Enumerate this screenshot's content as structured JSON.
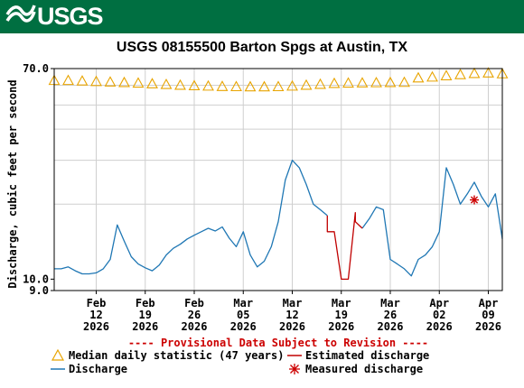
{
  "header": {
    "logo_text": "USGS",
    "brand_color": "#006f41"
  },
  "chart_data": {
    "type": "line",
    "title": "USGS 08155500 Barton Spgs at Austin, TX",
    "ylabel": "Discharge, cubic feet per second",
    "y_scale": "log",
    "ylim": [
      9.0,
      70.0
    ],
    "y_ticks": [
      {
        "value": 70.0,
        "label": "70.0"
      },
      {
        "value": 10.0,
        "label": "10.0"
      },
      {
        "value": 9.0,
        "label": "9.0"
      }
    ],
    "x_range": [
      "2026-02-06",
      "2026-04-11"
    ],
    "x_ticks": [
      {
        "date": "2026-02-12",
        "month": "Feb",
        "day": "12",
        "year": "2026"
      },
      {
        "date": "2026-02-19",
        "month": "Feb",
        "day": "19",
        "year": "2026"
      },
      {
        "date": "2026-02-26",
        "month": "Feb",
        "day": "26",
        "year": "2026"
      },
      {
        "date": "2026-03-05",
        "month": "Mar",
        "day": "05",
        "year": "2026"
      },
      {
        "date": "2026-03-12",
        "month": "Mar",
        "day": "12",
        "year": "2026"
      },
      {
        "date": "2026-03-19",
        "month": "Mar",
        "day": "19",
        "year": "2026"
      },
      {
        "date": "2026-03-26",
        "month": "Mar",
        "day": "26",
        "year": "2026"
      },
      {
        "date": "2026-04-02",
        "month": "Apr",
        "day": "02",
        "year": "2026"
      },
      {
        "date": "2026-04-09",
        "month": "Apr",
        "day": "09",
        "year": "2026"
      }
    ],
    "grid": true,
    "notice": "---- Provisional Data Subject to Revision ----",
    "legend": [
      {
        "key": "median",
        "label": "Median daily statistic (47 years)"
      },
      {
        "key": "estimated",
        "label": "Estimated discharge"
      },
      {
        "key": "discharge",
        "label": "Discharge"
      },
      {
        "key": "measured",
        "label": "Measured discharge"
      }
    ],
    "colors": {
      "median": "#e8a400",
      "discharge": "#1f77b4",
      "estimated": "#c00000",
      "measured": "#cc0000",
      "notice": "#cc0000"
    },
    "series": [
      {
        "key": "median",
        "x": [
          "2026-02-06",
          "2026-02-08",
          "2026-02-10",
          "2026-02-12",
          "2026-02-14",
          "2026-02-16",
          "2026-02-18",
          "2026-02-20",
          "2026-02-22",
          "2026-02-24",
          "2026-02-26",
          "2026-02-28",
          "2026-03-02",
          "2026-03-04",
          "2026-03-06",
          "2026-03-08",
          "2026-03-10",
          "2026-03-12",
          "2026-03-14",
          "2026-03-16",
          "2026-03-18",
          "2026-03-20",
          "2026-03-22",
          "2026-03-24",
          "2026-03-26",
          "2026-03-28",
          "2026-03-30",
          "2026-04-01",
          "2026-04-03",
          "2026-04-05",
          "2026-04-07",
          "2026-04-09",
          "2026-04-11"
        ],
        "y": [
          63.0,
          63.0,
          62.7,
          62.4,
          62.1,
          61.8,
          61.5,
          61.1,
          60.7,
          60.3,
          60.0,
          59.8,
          59.6,
          59.5,
          59.4,
          59.4,
          59.5,
          59.8,
          60.3,
          60.8,
          61.3,
          61.5,
          61.6,
          61.7,
          61.8,
          61.9,
          64.5,
          65.0,
          65.8,
          66.5,
          67.2,
          67.5,
          67.0
        ]
      },
      {
        "key": "discharge",
        "x": [
          "2026-02-06",
          "2026-02-07",
          "2026-02-08",
          "2026-02-09",
          "2026-02-10",
          "2026-02-11",
          "2026-02-12",
          "2026-02-13",
          "2026-02-14",
          "2026-02-15",
          "2026-02-16",
          "2026-02-17",
          "2026-02-18",
          "2026-02-19",
          "2026-02-20",
          "2026-02-21",
          "2026-02-22",
          "2026-02-23",
          "2026-02-24",
          "2026-02-25",
          "2026-02-26",
          "2026-02-27",
          "2026-02-28",
          "2026-03-01",
          "2026-03-02",
          "2026-03-03",
          "2026-03-04",
          "2026-03-05",
          "2026-03-06",
          "2026-03-07",
          "2026-03-08",
          "2026-03-09",
          "2026-03-10",
          "2026-03-11",
          "2026-03-12",
          "2026-03-13",
          "2026-03-14",
          "2026-03-15",
          "2026-03-16",
          "2026-03-17",
          "2026-03-18",
          "2026-03-19",
          "2026-03-20",
          "2026-03-21",
          "2026-03-22",
          "2026-03-23",
          "2026-03-24",
          "2026-03-25",
          "2026-03-26",
          "2026-03-27",
          "2026-03-28",
          "2026-03-29",
          "2026-03-30",
          "2026-03-31",
          "2026-04-01",
          "2026-04-02",
          "2026-04-03",
          "2026-04-04",
          "2026-04-05",
          "2026-04-06",
          "2026-04-07",
          "2026-04-08",
          "2026-04-09",
          "2026-04-10",
          "2026-04-11"
        ],
        "y": [
          11.0,
          11.0,
          11.2,
          10.8,
          10.5,
          10.5,
          10.6,
          11.0,
          12.0,
          16.5,
          14.2,
          12.3,
          11.5,
          11.1,
          10.8,
          11.4,
          12.5,
          13.3,
          13.8,
          14.5,
          15.0,
          15.5,
          16.0,
          15.6,
          16.2,
          14.6,
          13.5,
          15.5,
          12.5,
          11.2,
          11.8,
          13.5,
          17.0,
          25.0,
          30.0,
          28.0,
          24.0,
          20.0,
          19.0,
          18.0,
          null,
          null,
          null,
          null,
          16.0,
          17.5,
          19.5,
          19.0,
          12.0,
          11.5,
          11.0,
          10.3,
          12.0,
          12.5,
          13.5,
          15.5,
          28.0,
          24.0,
          20.0,
          22.0,
          24.5,
          21.5,
          19.5,
          22.0,
          14.5
        ]
      },
      {
        "key": "estimated",
        "x": [
          "2026-03-17",
          "2026-03-17",
          "2026-03-18",
          "2026-03-19",
          "2026-03-20",
          "2026-03-21",
          "2026-03-21",
          "2026-03-22"
        ],
        "y": [
          18.0,
          15.5,
          15.5,
          10.0,
          10.0,
          18.5,
          17.0,
          16.0
        ]
      },
      {
        "key": "measured",
        "x": [
          "2026-04-07"
        ],
        "y": [
          20.8
        ]
      }
    ]
  }
}
